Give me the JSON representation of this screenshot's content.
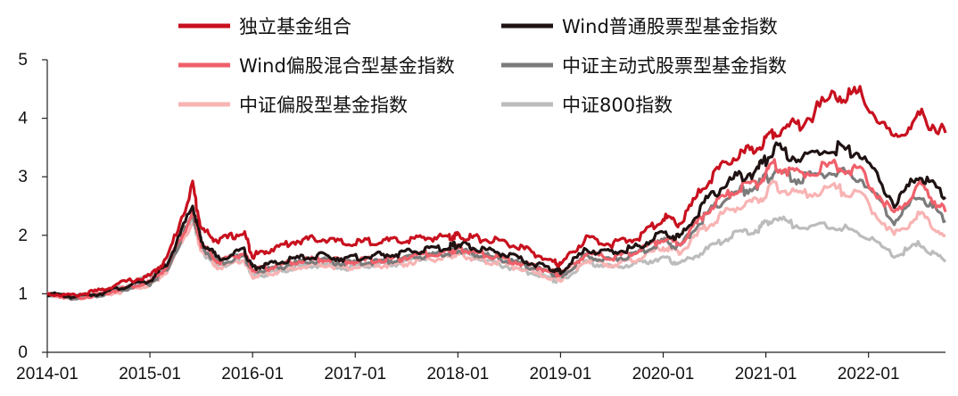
{
  "chart_data": {
    "type": "line",
    "title": "",
    "xlabel": "",
    "ylabel": "",
    "ylim": [
      0,
      5
    ],
    "yticks": [
      "0",
      "1",
      "2",
      "3",
      "4",
      "5"
    ],
    "xlim": [
      "2014-01",
      "2022-10"
    ],
    "xticks": [
      "2014-01",
      "2015-01",
      "2016-01",
      "2017-01",
      "2018-01",
      "2019-01",
      "2020-01",
      "2021-01",
      "2022-01"
    ],
    "grid": false,
    "legend_position": "top",
    "x": [
      "2014-01",
      "2014-04",
      "2014-07",
      "2014-10",
      "2015-01",
      "2015-03",
      "2015-06",
      "2015-07",
      "2015-09",
      "2015-12",
      "2016-01",
      "2016-03",
      "2016-06",
      "2016-09",
      "2016-12",
      "2017-03",
      "2017-06",
      "2017-09",
      "2017-12",
      "2018-01",
      "2018-03",
      "2018-06",
      "2018-09",
      "2018-12",
      "2019-01",
      "2019-04",
      "2019-07",
      "2019-10",
      "2020-01",
      "2020-03",
      "2020-06",
      "2020-09",
      "2020-12",
      "2021-02",
      "2021-05",
      "2021-09",
      "2021-12",
      "2022-04",
      "2022-07",
      "2022-10"
    ],
    "series": [
      {
        "name": "独立基金组合",
        "color": "#c8101e",
        "width": 3.2,
        "values": [
          1.0,
          0.97,
          1.05,
          1.2,
          1.3,
          1.6,
          2.85,
          2.1,
          1.9,
          2.05,
          1.65,
          1.75,
          1.9,
          1.95,
          1.85,
          1.9,
          1.9,
          1.95,
          1.98,
          2.0,
          1.95,
          1.9,
          1.75,
          1.55,
          1.5,
          1.95,
          1.85,
          1.95,
          2.3,
          2.2,
          2.9,
          3.3,
          3.5,
          3.8,
          3.9,
          4.4,
          4.4,
          3.6,
          4.05,
          3.75
        ]
      },
      {
        "name": "Wind普通股票型基金指数",
        "color": "#1f1212",
        "width": 3.2,
        "values": [
          1.0,
          0.95,
          1.0,
          1.12,
          1.22,
          1.5,
          2.5,
          1.9,
          1.6,
          1.75,
          1.45,
          1.5,
          1.6,
          1.65,
          1.6,
          1.65,
          1.68,
          1.75,
          1.8,
          1.85,
          1.78,
          1.7,
          1.55,
          1.42,
          1.38,
          1.75,
          1.7,
          1.8,
          2.05,
          1.95,
          2.6,
          2.95,
          3.1,
          3.5,
          3.3,
          3.5,
          3.4,
          2.55,
          3.05,
          2.65
        ]
      },
      {
        "name": "Wind偏股混合型基金指数",
        "color": "#f0606a",
        "width": 3.2,
        "values": [
          1.0,
          0.93,
          0.98,
          1.1,
          1.2,
          1.45,
          2.4,
          1.85,
          1.55,
          1.7,
          1.4,
          1.45,
          1.55,
          1.6,
          1.55,
          1.58,
          1.6,
          1.68,
          1.72,
          1.78,
          1.7,
          1.62,
          1.5,
          1.38,
          1.33,
          1.68,
          1.62,
          1.72,
          1.95,
          1.85,
          2.4,
          2.75,
          2.9,
          3.2,
          3.05,
          3.2,
          3.1,
          2.35,
          2.85,
          2.4
        ]
      },
      {
        "name": "中证主动式股票型基金指数",
        "color": "#7b7b7b",
        "width": 3.2,
        "values": [
          1.0,
          0.93,
          0.97,
          1.08,
          1.18,
          1.42,
          2.35,
          1.82,
          1.52,
          1.65,
          1.38,
          1.42,
          1.52,
          1.57,
          1.52,
          1.55,
          1.58,
          1.65,
          1.7,
          1.75,
          1.68,
          1.6,
          1.48,
          1.35,
          1.3,
          1.65,
          1.58,
          1.68,
          1.9,
          1.8,
          2.35,
          2.7,
          2.85,
          3.1,
          2.95,
          3.1,
          3.0,
          2.25,
          2.7,
          2.25
        ]
      },
      {
        "name": "中证偏股型基金指数",
        "color": "#f8b3b3",
        "width": 3.2,
        "values": [
          1.0,
          0.92,
          0.96,
          1.05,
          1.15,
          1.38,
          2.25,
          1.75,
          1.45,
          1.58,
          1.3,
          1.35,
          1.45,
          1.5,
          1.45,
          1.48,
          1.5,
          1.58,
          1.62,
          1.68,
          1.6,
          1.52,
          1.4,
          1.28,
          1.25,
          1.58,
          1.5,
          1.6,
          1.8,
          1.7,
          2.15,
          2.45,
          2.6,
          2.85,
          2.7,
          2.8,
          2.7,
          2.0,
          2.35,
          2.0
        ]
      },
      {
        "name": "中证800指数",
        "color": "#bcbcbc",
        "width": 3.2,
        "values": [
          1.0,
          0.92,
          1.0,
          1.12,
          1.3,
          1.5,
          2.3,
          1.75,
          1.45,
          1.65,
          1.3,
          1.35,
          1.45,
          1.5,
          1.45,
          1.5,
          1.52,
          1.62,
          1.68,
          1.75,
          1.62,
          1.5,
          1.38,
          1.25,
          1.22,
          1.55,
          1.45,
          1.52,
          1.62,
          1.5,
          1.75,
          2.0,
          2.1,
          2.3,
          2.15,
          2.15,
          2.05,
          1.65,
          1.85,
          1.55
        ]
      }
    ]
  }
}
